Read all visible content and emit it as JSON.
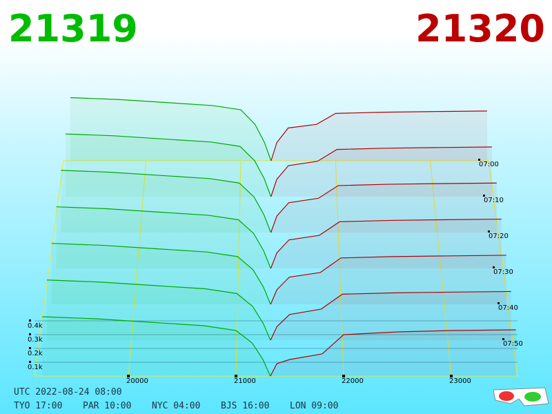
{
  "chart_data": {
    "type": "depth3d",
    "bid_price": "21319",
    "ask_price": "21320",
    "bid_color": "#00a800",
    "ask_color": "#b00000",
    "bid_prices": [
      19200,
      19700,
      20200,
      20700,
      21000,
      21150,
      21250,
      21319
    ],
    "ask_prices": [
      21320,
      21380,
      21500,
      21800,
      22000,
      22500,
      23000,
      23600
    ],
    "snapshots": [
      {
        "bids": [
          520,
          505,
          480,
          455,
          420,
          300,
          150,
          0
        ],
        "asks": [
          0,
          150,
          270,
          300,
          390,
          400,
          405,
          410
        ]
      },
      {
        "bids": [
          505,
          490,
          465,
          440,
          405,
          290,
          145,
          0
        ],
        "asks": [
          0,
          140,
          250,
          285,
          380,
          390,
          395,
          400
        ]
      },
      {
        "bids": [
          490,
          475,
          450,
          425,
          390,
          280,
          140,
          0
        ],
        "asks": [
          0,
          130,
          235,
          270,
          370,
          380,
          385,
          390
        ]
      },
      {
        "bids": [
          475,
          460,
          435,
          410,
          375,
          270,
          135,
          0
        ],
        "asks": [
          0,
          120,
          220,
          255,
          360,
          370,
          375,
          380
        ]
      },
      {
        "bids": [
          460,
          445,
          420,
          395,
          360,
          260,
          130,
          0
        ],
        "asks": [
          0,
          110,
          205,
          240,
          350,
          360,
          365,
          370
        ]
      },
      {
        "bids": [
          445,
          430,
          405,
          380,
          345,
          250,
          125,
          0
        ],
        "asks": [
          0,
          100,
          190,
          230,
          340,
          350,
          355,
          360
        ]
      },
      {
        "bids": [
          430,
          415,
          390,
          365,
          330,
          240,
          120,
          0
        ],
        "asks": [
          0,
          90,
          120,
          160,
          300,
          320,
          330,
          335
        ]
      }
    ],
    "xlim": [
      19128,
      23615
    ],
    "xticks": [
      20000,
      21000,
      22000,
      23000
    ],
    "ylim": [
      0,
      500
    ],
    "yticks": [
      {
        "value": 100,
        "label": "0.1k"
      },
      {
        "value": 200,
        "label": "0.2k"
      },
      {
        "value": 300,
        "label": "0.3k"
      },
      {
        "value": 400,
        "label": "0.4k"
      }
    ],
    "time_ticks": [
      "07:00",
      "07:10",
      "07:20",
      "07:30",
      "07:40",
      "07:50"
    ],
    "footer": {
      "utc": "UTC 2022-08-24 08:00",
      "cities": [
        "TYO 17:00",
        "PAR 10:00",
        "NYC 04:00",
        "BJS 16:00",
        "LON 09:00"
      ]
    }
  }
}
